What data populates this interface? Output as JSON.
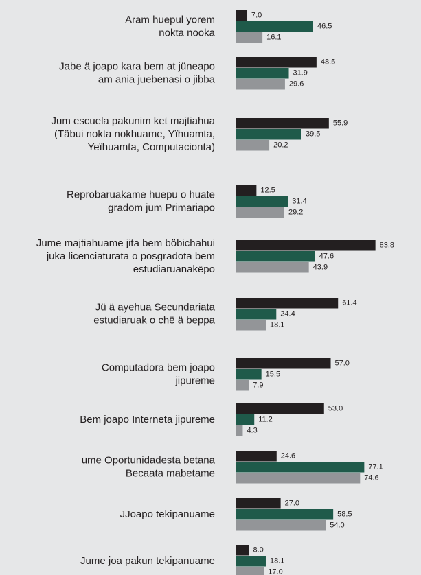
{
  "chart_data": {
    "type": "hbar",
    "categories": [
      [
        "Aram huepul yorem",
        "nokta nooka"
      ],
      [
        "Jabe ä joapo kara bem at jüneapo",
        "am ania juebenasi o jibba"
      ],
      [
        "Jum escuela pakunim ket majtiahua",
        "(Täbui nokta nokhuame, Yïhuamta,",
        "Yeïhuamta, Computacionta)"
      ],
      [
        "Reprobaruakame huepu o huate",
        "gradom jum Primariapo"
      ],
      [
        "Jume majtiahuame jita bem böbichahui",
        "juka licenciaturata o posgradota bem",
        "estudiaruanakëpo"
      ],
      [
        "Jü ä ayehua Secundariata",
        "estudiaruak o chë ä beppa"
      ],
      [
        "Computadora bem joapo",
        "jipureme"
      ],
      [
        "Bem joapo Interneta jipureme"
      ],
      [
        "ume Oportunidadesta betana",
        "Becaata mabetame"
      ],
      [
        "JJoapo tekipanuame"
      ],
      [
        "Jume joa pakun tekipanuame"
      ]
    ],
    "series": [
      {
        "color": "#231f20",
        "values": [
          7.0,
          48.5,
          55.9,
          12.5,
          83.8,
          61.4,
          57.0,
          53.0,
          24.6,
          27.0,
          8.0
        ],
        "value_labels": [
          "7.0",
          "48.5",
          "55.9",
          "12.5",
          "83.8",
          "61.4",
          "57.0",
          "53.0",
          "24.6",
          "27.0",
          "8.0"
        ]
      },
      {
        "color": "#1f5a4a",
        "values": [
          46.5,
          31.9,
          39.5,
          31.4,
          47.6,
          24.4,
          15.5,
          11.2,
          77.1,
          58.5,
          18.1
        ],
        "value_labels": [
          "46.5",
          "31.9",
          "39.5",
          "31.4",
          "47.6",
          "24.4",
          "15.5",
          "11.2",
          "77.1",
          "58.5",
          "18.1"
        ]
      },
      {
        "color": "#939598",
        "values": [
          16.1,
          29.6,
          20.2,
          29.2,
          43.9,
          18.1,
          7.9,
          4.3,
          74.6,
          54.0,
          17.0
        ],
        "value_labels": [
          "16.1",
          "29.6",
          "20.2",
          "29.2",
          "43.9",
          "18.1",
          "7.9",
          "4.3",
          "74.6",
          "54.0",
          "17.0"
        ]
      }
    ],
    "xlim": [
      0,
      100
    ]
  }
}
